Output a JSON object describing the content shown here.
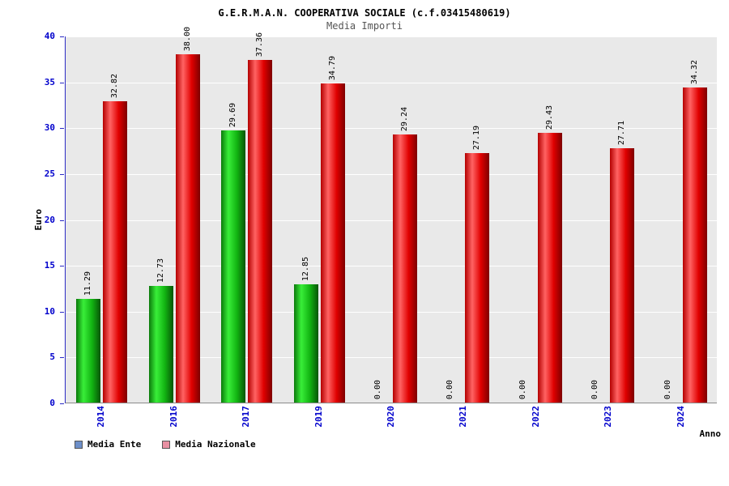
{
  "title": "G.E.R.M.A.N. COOPERATIVA SOCIALE (c.f.03415480619)",
  "subtitle": "Media Importi",
  "chart_data": {
    "type": "bar",
    "title": "G.E.R.M.A.N. COOPERATIVA SOCIALE (c.f.03415480619)",
    "subtitle": "Media Importi",
    "categories": [
      "2014",
      "2016",
      "2017",
      "2019",
      "2020",
      "2021",
      "2022",
      "2023",
      "2024"
    ],
    "series": [
      {
        "name": "Media Ente",
        "values": [
          11.29,
          12.73,
          29.69,
          12.85,
          0,
          0,
          0,
          0,
          0
        ],
        "legend_color": "#6d8fc9",
        "bar_gradient": [
          "#0b7a0b",
          "#39ee39",
          "#12b412",
          "#075507"
        ]
      },
      {
        "name": "Media Nazionale",
        "values": [
          32.82,
          38.0,
          37.36,
          34.79,
          29.24,
          27.19,
          29.43,
          27.71,
          34.32
        ],
        "legend_color": "#e890a2",
        "bar_gradient": [
          "#b40000",
          "#ff6363",
          "#e00000",
          "#7d0000"
        ]
      }
    ],
    "xlabel": "Anno",
    "ylabel": "Euro",
    "ylim": [
      0,
      40
    ],
    "ytick_step": 5,
    "grid": true,
    "legend_position": "bottom-left",
    "value_label_format": "0.00"
  },
  "colors": {
    "plot_background": "#e9e9e9",
    "gridline": "#ffffff",
    "axis_line": "#2b2bc4",
    "axis_tick_text": "#0000cc",
    "value_label_text": "#000000",
    "title_text": "#000000",
    "subtitle_text": "#555555"
  }
}
